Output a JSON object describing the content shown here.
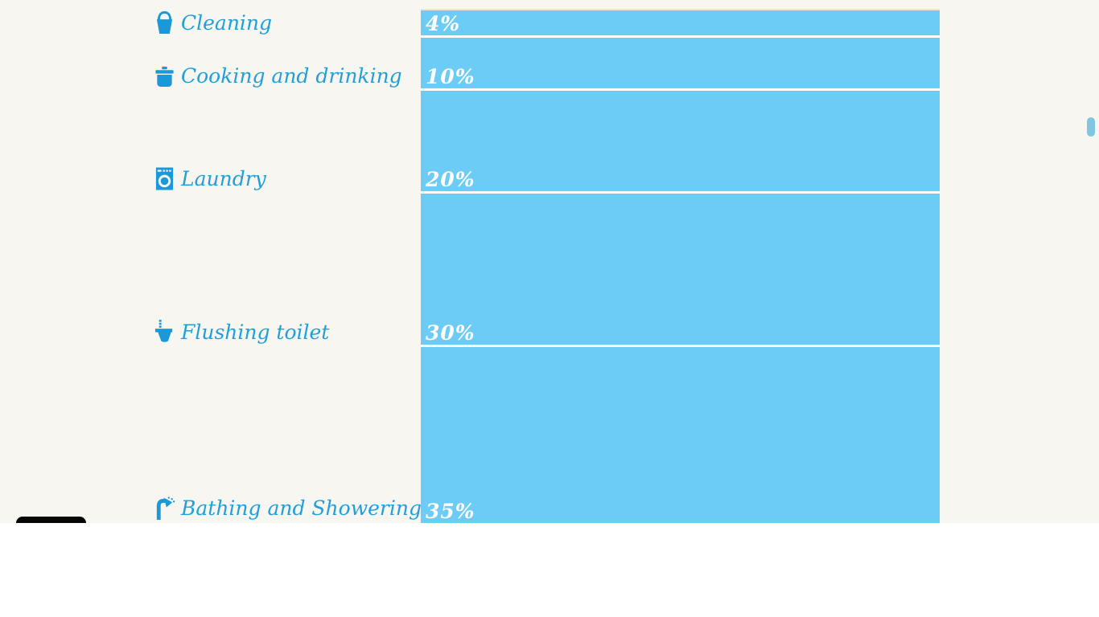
{
  "page": {
    "background_color": "#f8f6f0",
    "lower_background_color": "#ffffff"
  },
  "chart_data": {
    "type": "bar",
    "orientation": "horizontal bars stacked as vertical percentage segments",
    "categories": [
      "Cleaning",
      "Cooking and drinking",
      "Laundry",
      "Flushing toilet",
      "Bathing and Showering"
    ],
    "values": [
      4,
      10,
      20,
      30,
      35
    ],
    "value_labels": [
      "4%",
      "10%",
      "20%",
      "30%",
      "35%"
    ],
    "unit": "%",
    "icons": [
      "bucket-icon",
      "cooking-pot-icon",
      "washing-machine-icon",
      "toilet-icon",
      "shower-icon"
    ],
    "bar_color": "#6dccf5",
    "label_color": "#219fda",
    "icon_color": "#1a98d8",
    "value_label_color": "#ffffff",
    "separator_color": "#ffffff",
    "legend": false,
    "grid": false
  },
  "ui": {
    "scrollbar_thumb_color": "#7ec6e2",
    "cropped_element_color": "#060606"
  }
}
